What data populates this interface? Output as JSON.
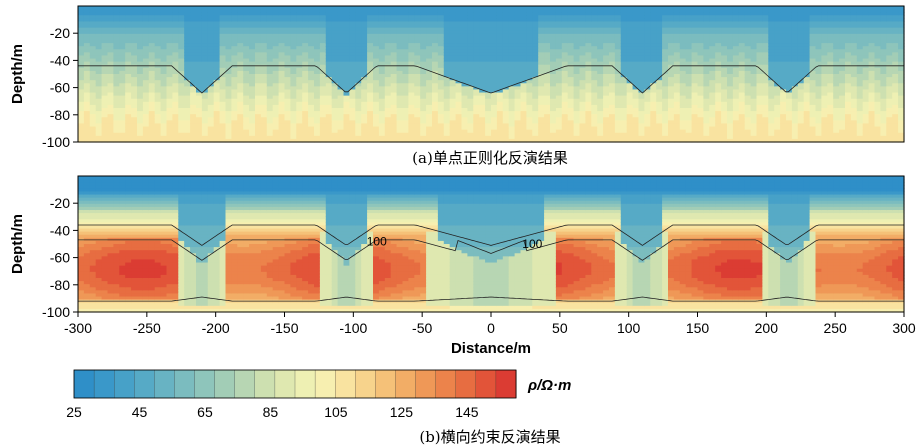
{
  "palette": [
    "#2f8fc8",
    "#3a98c9",
    "#47a1c8",
    "#56aac6",
    "#68b3c3",
    "#7bbcbf",
    "#8ec5bb",
    "#a2cdb6",
    "#b7d6b3",
    "#cde0b0",
    "#dfe8b0",
    "#eef0b3",
    "#f7efb0",
    "#f9e3a0",
    "#f7d38c",
    "#f5c178",
    "#f2ad66",
    "#ef9857",
    "#ec834b",
    "#e76d41",
    "#e25439",
    "#db3c33"
  ],
  "chart_data": [
    {
      "type": "heatmap",
      "caption": "(a)单点正则化反演结果",
      "ylabel": "Depth/m",
      "xlim": [
        -300,
        300
      ],
      "ylim": [
        -100,
        0
      ],
      "yticks": [
        -20,
        -40,
        -60,
        -80,
        -100
      ],
      "anomalies": [
        {
          "x_center": -210,
          "width": 10,
          "depth": -45
        },
        {
          "x_center": -105,
          "width": 10,
          "depth": -55
        },
        {
          "x_center": 0,
          "width": 25,
          "depth": -65
        },
        {
          "x_center": 110,
          "width": 10,
          "depth": -55
        },
        {
          "x_center": 215,
          "width": 10,
          "depth": -45
        }
      ],
      "value_range": [
        25,
        110
      ]
    },
    {
      "type": "heatmap",
      "caption": "(b)横向约束反演结果",
      "ylabel": "Depth/m",
      "xlabel": "Distance/m",
      "xlim": [
        -300,
        300
      ],
      "ylim": [
        -100,
        0
      ],
      "xticks": [
        -300,
        -250,
        -200,
        -150,
        -100,
        -50,
        0,
        50,
        100,
        150,
        200,
        250,
        300
      ],
      "yticks": [
        -20,
        -40,
        -60,
        -80,
        -100
      ],
      "contour_labels": [
        {
          "text": "100",
          "x": -83,
          "y": -48
        },
        {
          "text": "100",
          "x": 30,
          "y": -50
        }
      ],
      "anomalies": [
        {
          "x_center": -210,
          "width": 10,
          "depth": -45
        },
        {
          "x_center": -105,
          "width": 10,
          "depth": -55
        },
        {
          "x_center": 0,
          "width": 25,
          "depth": -65
        },
        {
          "x_center": 110,
          "width": 10,
          "depth": -55
        },
        {
          "x_center": 215,
          "width": 10,
          "depth": -45
        }
      ],
      "value_range": [
        25,
        160
      ]
    }
  ],
  "colorbar": {
    "ticks": [
      25,
      45,
      65,
      85,
      105,
      125,
      145
    ],
    "min": 25,
    "max": 160,
    "label": "ρ/Ω·m"
  }
}
